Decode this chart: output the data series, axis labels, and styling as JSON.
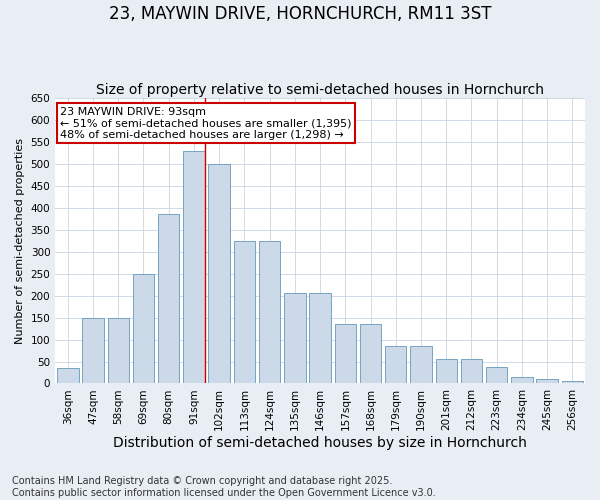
{
  "title": "23, MAYWIN DRIVE, HORNCHURCH, RM11 3ST",
  "subtitle": "Size of property relative to semi-detached houses in Hornchurch",
  "xlabel": "Distribution of semi-detached houses by size in Hornchurch",
  "ylabel": "Number of semi-detached properties",
  "categories": [
    "36sqm",
    "47sqm",
    "58sqm",
    "69sqm",
    "80sqm",
    "91sqm",
    "102sqm",
    "113sqm",
    "124sqm",
    "135sqm",
    "146sqm",
    "157sqm",
    "168sqm",
    "179sqm",
    "190sqm",
    "201sqm",
    "212sqm",
    "223sqm",
    "234sqm",
    "245sqm",
    "256sqm"
  ],
  "values": [
    35,
    150,
    150,
    250,
    385,
    530,
    500,
    325,
    325,
    205,
    205,
    135,
    135,
    85,
    85,
    55,
    55,
    38,
    15,
    10,
    5
  ],
  "bar_color": "#ccd9e8",
  "bar_edge_color": "#6699bb",
  "reference_line_color": "#cc0000",
  "annotation_text": "23 MAYWIN DRIVE: 93sqm\n← 51% of semi-detached houses are smaller (1,395)\n48% of semi-detached houses are larger (1,298) →",
  "annotation_box_color": "white",
  "annotation_box_edge_color": "#cc0000",
  "ylim_max": 650,
  "yticks": [
    0,
    50,
    100,
    150,
    200,
    250,
    300,
    350,
    400,
    450,
    500,
    550,
    600,
    650
  ],
  "footnote": "Contains HM Land Registry data © Crown copyright and database right 2025.\nContains public sector information licensed under the Open Government Licence v3.0.",
  "bg_color": "#e8eef4",
  "plot_bg_color": "#ffffff",
  "grid_color": "#c8d4e0",
  "title_fontsize": 12,
  "subtitle_fontsize": 10,
  "xlabel_fontsize": 10,
  "ylabel_fontsize": 8,
  "tick_fontsize": 7.5,
  "annotation_fontsize": 8,
  "footnote_fontsize": 7
}
